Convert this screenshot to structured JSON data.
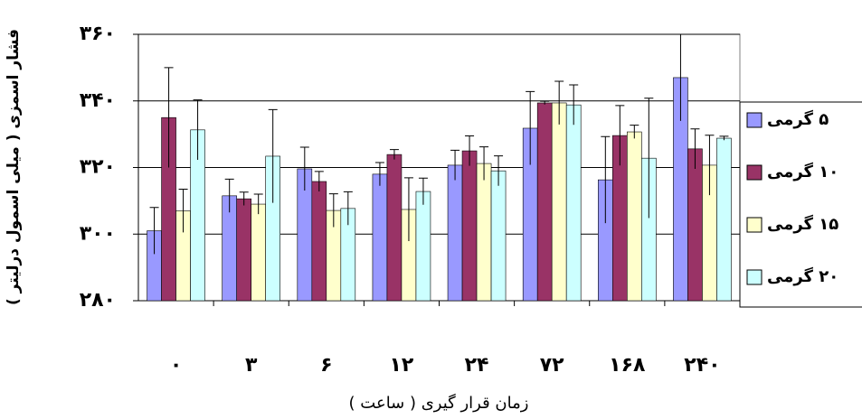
{
  "chart_data": {
    "type": "bar",
    "y_label": "فشار اسمزی ( میلی اسمول درلیتر )",
    "x_label": "زمان قرار گیری ( ساعت )",
    "categories": [
      "۰",
      "۳",
      "۶",
      "۱۲",
      "۲۴",
      "۷۲",
      "۱۶۸",
      "۲۴۰"
    ],
    "series": [
      {
        "name": "۵ گرمی",
        "color": "#9999ff",
        "values": [
          301,
          311.5,
          319.6,
          318,
          320.7,
          331.8,
          316.3,
          347
        ],
        "errors": [
          7,
          5,
          6.5,
          3.5,
          4.5,
          11,
          13,
          13
        ]
      },
      {
        "name": "۱۰ گرمی",
        "color": "#993366",
        "values": [
          335,
          310.6,
          315.8,
          323.9,
          325,
          339.4,
          329.6,
          325.6
        ],
        "errors": [
          15,
          2,
          3,
          1.5,
          4.5,
          0.5,
          9,
          6
        ]
      },
      {
        "name": "۱۵ گرمی",
        "color": "#ffffcc",
        "values": [
          307,
          309,
          307.1,
          307.4,
          321.2,
          339.4,
          330.7,
          320.7
        ],
        "errors": [
          6.5,
          3,
          5,
          9.5,
          5,
          6.5,
          2,
          9
        ]
      },
      {
        "name": "۲۰ گرمی",
        "color": "#ccffff",
        "values": [
          331.3,
          323.4,
          307.7,
          312.8,
          319,
          338.8,
          322.8,
          328.8
        ],
        "errors": [
          9,
          14,
          5,
          4,
          4.5,
          6,
          18,
          0.6
        ]
      }
    ],
    "ylim": [
      280,
      360
    ],
    "yticks": [
      {
        "value": 280,
        "label": "۲۸۰"
      },
      {
        "value": 300,
        "label": "۳۰۰"
      },
      {
        "value": 320,
        "label": "۳۲۰"
      },
      {
        "value": 340,
        "label": "۳۴۰"
      },
      {
        "value": 360,
        "label": "۳۶۰"
      }
    ],
    "grid": true
  }
}
